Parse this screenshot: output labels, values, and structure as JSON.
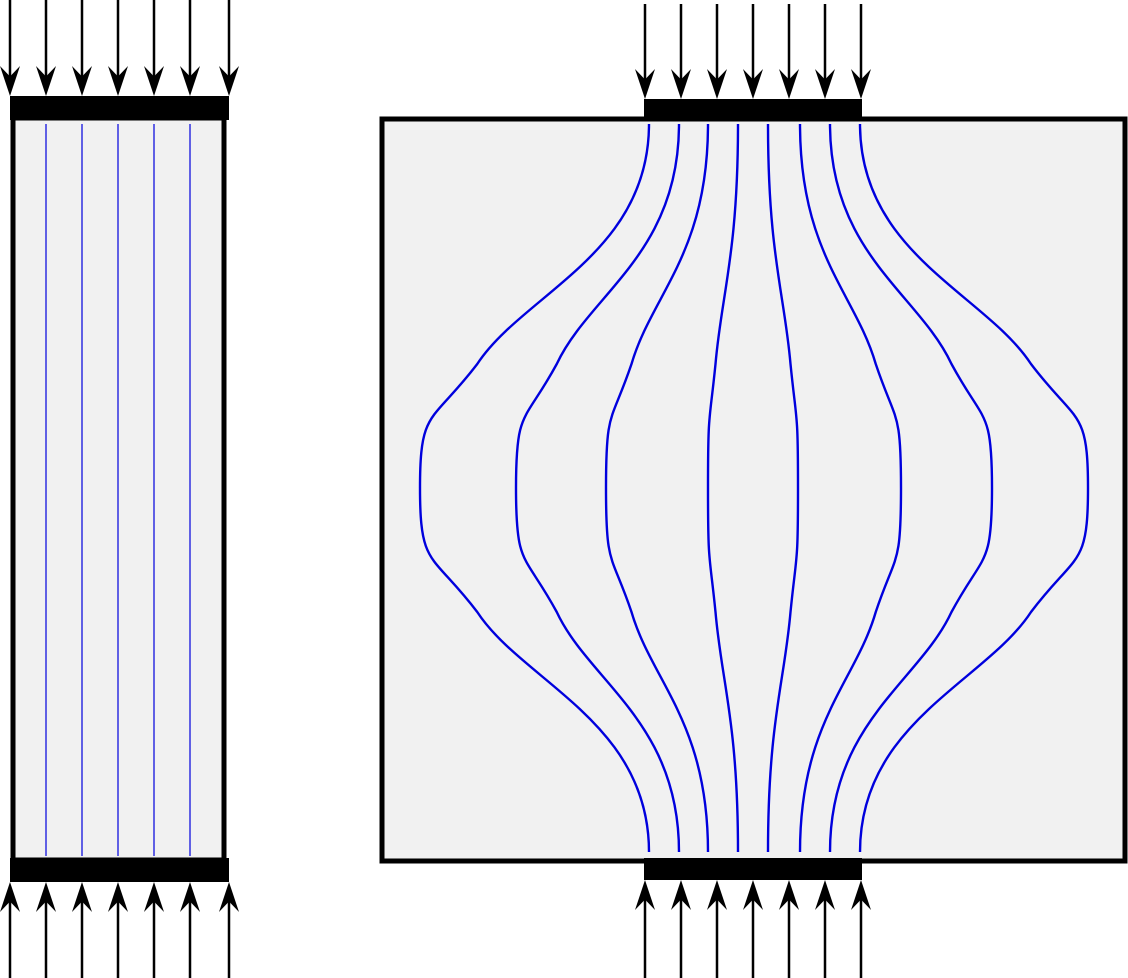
{
  "colors": {
    "background": "#ffffff",
    "specimen_fill": "#f1f1f1",
    "outline": "#000000",
    "plate": "#000000",
    "arrow": "#000000",
    "stress_line": "#0000dd"
  },
  "left_specimen": {
    "description_name": "uniform-column",
    "top_arrow_count": 7,
    "bottom_arrow_count": 7,
    "stress_line_count": 5
  },
  "right_specimen": {
    "description_name": "wide-block",
    "top_arrow_count": 7,
    "bottom_arrow_count": 7,
    "stress_line_count": 8
  }
}
